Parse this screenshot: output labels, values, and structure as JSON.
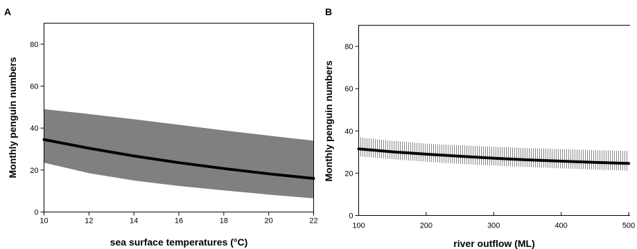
{
  "chart_data": [
    {
      "panel_label": "A",
      "type": "line",
      "xlabel": "sea surface temperatures (°C)",
      "ylabel": "Monthly penguin numbers",
      "xlim": [
        10,
        22
      ],
      "ylim": [
        0,
        90
      ],
      "xticks": [
        10,
        12,
        14,
        16,
        18,
        20,
        22
      ],
      "yticks": [
        0,
        20,
        40,
        60,
        80
      ],
      "grid": false,
      "band_style": "solid",
      "colors": {
        "line": "#000000",
        "band": "#808080"
      },
      "series": [
        {
          "x": [
            10,
            12,
            14,
            16,
            18,
            20,
            22
          ],
          "y": [
            34.5,
            30.4,
            26.7,
            23.5,
            20.7,
            18.2,
            16
          ],
          "lower": [
            23.5,
            18.5,
            15,
            12.4,
            10.3,
            8.3,
            6.5
          ],
          "upper": [
            49,
            46.7,
            44.2,
            41.6,
            38.9,
            36.4,
            34
          ]
        }
      ]
    },
    {
      "panel_label": "B",
      "type": "line",
      "xlabel": "river outflow (ML)",
      "ylabel": "Monthly penguin numbers",
      "xlim": [
        100,
        500
      ],
      "ylim": [
        0,
        90
      ],
      "xticks": [
        100,
        200,
        300,
        400,
        500
      ],
      "yticks": [
        0,
        20,
        40,
        60,
        80
      ],
      "grid": false,
      "band_style": "vertical-hatch",
      "colors": {
        "line": "#000000",
        "band": "#666666"
      },
      "series": [
        {
          "x": [
            100,
            150,
            200,
            250,
            300,
            350,
            400,
            450,
            500
          ],
          "y": [
            31.5,
            30.1,
            29,
            28,
            27.1,
            26.3,
            25.7,
            25.1,
            24.6
          ],
          "lower": [
            28,
            26.6,
            25.4,
            24.4,
            23.6,
            22.9,
            22.3,
            21.7,
            21.2
          ],
          "upper": [
            37,
            35.3,
            34,
            33.2,
            32.5,
            31.9,
            31.4,
            30.9,
            30.5
          ]
        }
      ]
    }
  ]
}
